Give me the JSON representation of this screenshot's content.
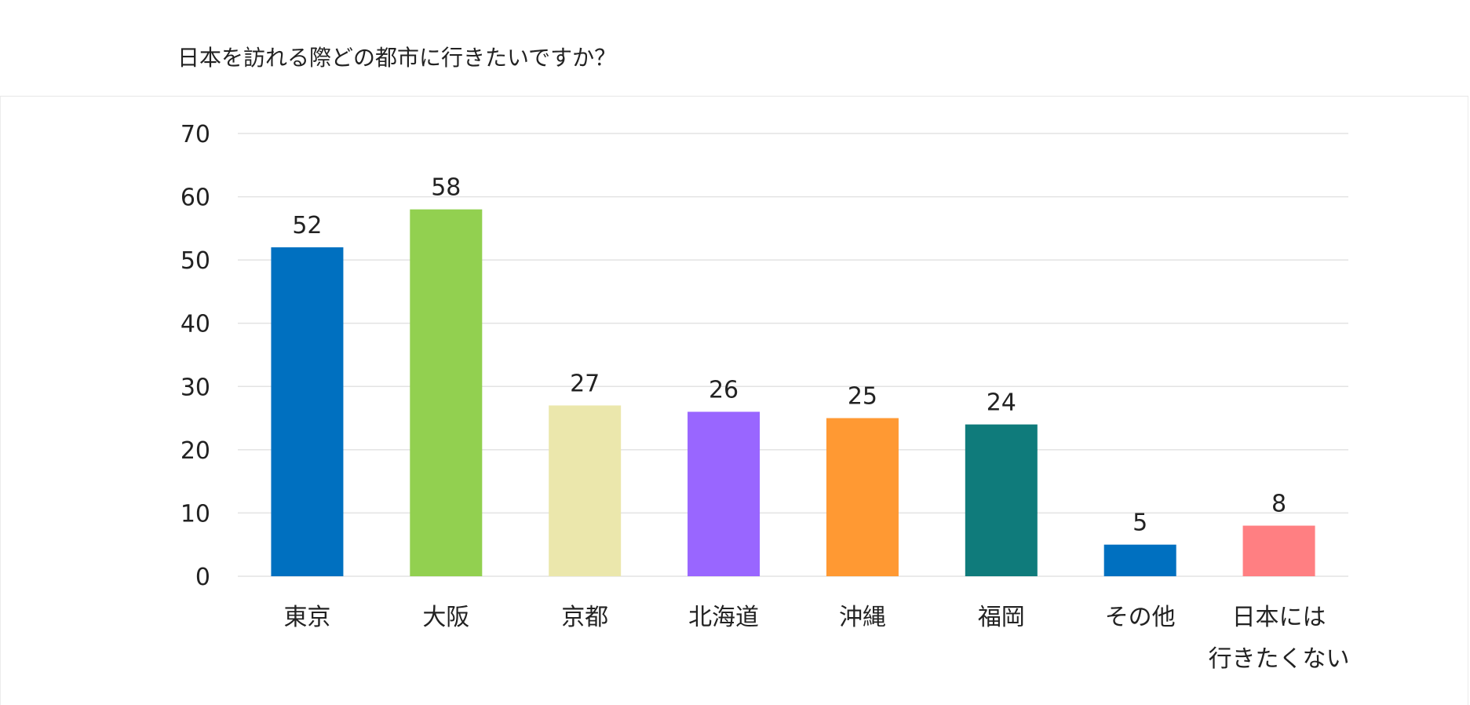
{
  "chart_data": {
    "type": "bar",
    "title": "日本を訪れる際どの都市に行きたいですか？",
    "xlabel": "",
    "ylabel": "",
    "ylim": [
      0,
      70
    ],
    "yticks": [
      0,
      10,
      20,
      30,
      40,
      50,
      60,
      70
    ],
    "grid": true,
    "legend": "none",
    "categories": [
      [
        "東京"
      ],
      [
        "大阪"
      ],
      [
        "京都"
      ],
      [
        "北海道"
      ],
      [
        "沖縄"
      ],
      [
        "福岡"
      ],
      [
        "その他"
      ],
      [
        "日本には",
        "行きたくない"
      ]
    ],
    "values": [
      52,
      58,
      27,
      26,
      25,
      24,
      5,
      8
    ],
    "colors": [
      "#0070C0",
      "#92D050",
      "#EBE7AC",
      "#9966FF",
      "#FF9933",
      "#0F7B7B",
      "#0070C0",
      "#FF7F82"
    ]
  }
}
